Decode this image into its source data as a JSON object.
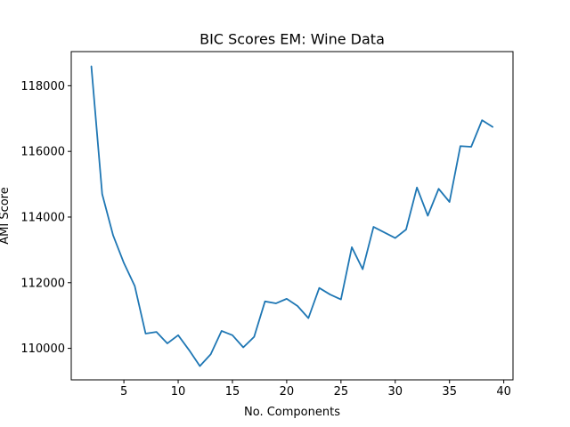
{
  "chart_data": {
    "type": "line",
    "title": "BIC Scores EM: Wine Data",
    "xlabel": "No. Components",
    "ylabel": "AMI Score",
    "xlim": [
      0.15,
      40.85
    ],
    "ylim": [
      109040,
      119040
    ],
    "xticks": [
      5,
      10,
      15,
      20,
      25,
      30,
      35,
      40
    ],
    "yticks": [
      110000,
      112000,
      114000,
      116000,
      118000
    ],
    "grid": false,
    "color": "#1f77b4",
    "series": [
      {
        "x": [
          2,
          3,
          4,
          5,
          6,
          7,
          8,
          9,
          10,
          11,
          12,
          13,
          14,
          15,
          16,
          17,
          18,
          19,
          20,
          21,
          22,
          23,
          24,
          25,
          26,
          27,
          28,
          29,
          30,
          31,
          32,
          33,
          34,
          35,
          36,
          37,
          38,
          39
        ],
        "values": [
          118600,
          114700,
          113450,
          112600,
          111900,
          110450,
          110500,
          110150,
          110400,
          109950,
          109460,
          109820,
          110530,
          110400,
          110030,
          110350,
          111430,
          111370,
          111510,
          111290,
          110920,
          111840,
          111640,
          111490,
          113080,
          112410,
          113700,
          113530,
          113360,
          113620,
          114900,
          114040,
          114860,
          114460,
          116160,
          116140,
          116950,
          116740
        ]
      }
    ]
  }
}
